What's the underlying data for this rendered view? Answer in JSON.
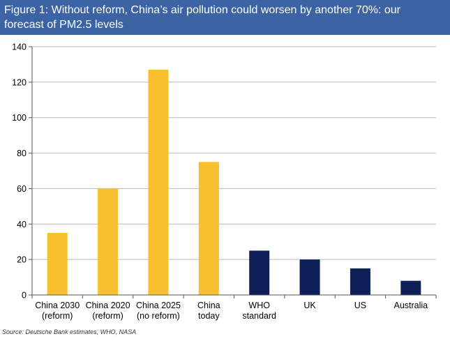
{
  "title": {
    "line1": "Figure 1: Without reform, China’s air pollution could worsen by another 70%: our",
    "line2": "forecast of PM2.5 levels"
  },
  "source": "Source: Deutsche Bank estimates, WHO, NASA",
  "colors": {
    "title_bg": "#3c63a4",
    "china": "#f8bf2e",
    "other": "#0e2057",
    "grid": "#b8b8b8"
  },
  "chart_data": {
    "type": "bar",
    "title": "Figure 1: Without reform, China’s air pollution could worsen by another 70%: our forecast of PM2.5 levels",
    "categories": [
      [
        "China 2030",
        "(reform)"
      ],
      [
        "China 2020",
        "(reform)"
      ],
      [
        "China 2025",
        "(no reform)"
      ],
      [
        "China",
        "today"
      ],
      [
        "WHO",
        "standard"
      ],
      [
        "UK"
      ],
      [
        "US"
      ],
      [
        "Australia"
      ]
    ],
    "values": [
      35,
      60,
      127,
      75,
      25,
      20,
      15,
      8
    ],
    "bar_colors": [
      "#f8bf2e",
      "#f8bf2e",
      "#f8bf2e",
      "#f8bf2e",
      "#0e2057",
      "#0e2057",
      "#0e2057",
      "#0e2057"
    ],
    "ylim": [
      0,
      140
    ],
    "yticks": [
      0,
      20,
      40,
      60,
      80,
      100,
      120,
      140
    ],
    "grid": true,
    "legend": "none",
    "xlabel": "",
    "ylabel": ""
  }
}
